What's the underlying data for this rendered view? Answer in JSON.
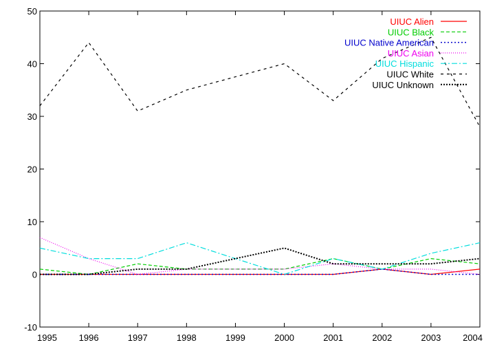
{
  "chart_data": {
    "type": "line",
    "x": [
      1995,
      1996,
      1997,
      1998,
      1999,
      2000,
      2001,
      2002,
      2003,
      2004
    ],
    "xlim": [
      1995,
      2004
    ],
    "ylim": [
      -10,
      50
    ],
    "xticks": [
      "1995",
      "1996",
      "1997",
      "1998",
      "1999",
      "2000",
      "2001",
      "2002",
      "2003",
      "2004"
    ],
    "yticks": [
      "-10",
      "0",
      "10",
      "20",
      "30",
      "40",
      "50"
    ],
    "legend_position": "top-right",
    "grid": false,
    "series": [
      {
        "name": "UIUC Alien",
        "color": "#ff0000",
        "dash": "solid",
        "values": [
          0,
          0,
          0,
          0,
          0,
          0,
          0,
          1,
          0,
          1
        ]
      },
      {
        "name": "UIUC Black",
        "color": "#00cc00",
        "dash": "dashed",
        "values": [
          1,
          0,
          2,
          1,
          1,
          1,
          3,
          1,
          3,
          2
        ]
      },
      {
        "name": "UIUC Native American",
        "color": "#0000cc",
        "dash": "dotted",
        "values": [
          0,
          0,
          0,
          0,
          0,
          0,
          0,
          1,
          0,
          0
        ]
      },
      {
        "name": "UIUC Asian",
        "color": "#ee00ee",
        "dash": "fine-dotted",
        "values": [
          7,
          3,
          0,
          1,
          1,
          1,
          2,
          1,
          1,
          0
        ]
      },
      {
        "name": "UIUC Hispanic",
        "color": "#00dddd",
        "dash": "dash-dot",
        "values": [
          5,
          3,
          3,
          6,
          3,
          0,
          3,
          1,
          4,
          6
        ]
      },
      {
        "name": "UIUC White",
        "color": "#000000",
        "dash": "short-dashed",
        "values": [
          32,
          44,
          31,
          35,
          37.5,
          40,
          33,
          41,
          45,
          28
        ]
      },
      {
        "name": "UIUC Unknown",
        "color": "#000000",
        "dash": "dense-dotted",
        "values": [
          0,
          0,
          1,
          1,
          3,
          5,
          2,
          2,
          2,
          3
        ]
      }
    ]
  }
}
